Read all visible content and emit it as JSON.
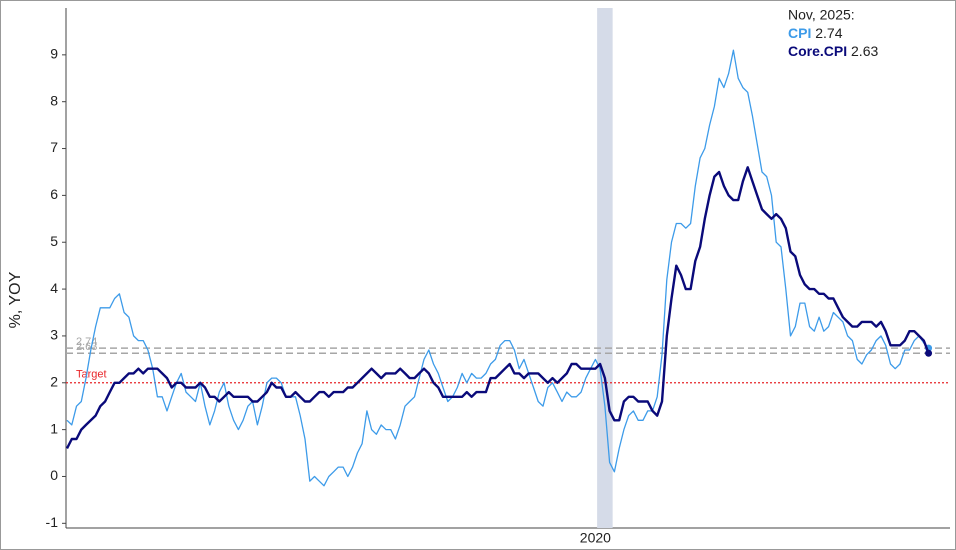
{
  "chart_data": {
    "type": "line",
    "y_label": "%, YOY",
    "ylim": [
      -1.1,
      10
    ],
    "yticks": [
      -1,
      0,
      1,
      2,
      3,
      4,
      5,
      6,
      7,
      8,
      9
    ],
    "annotation_title": "Nov, 2025:",
    "shaded_range": [
      112,
      114
    ],
    "target": {
      "label": "Target",
      "value": 2,
      "color": "#e8262a"
    },
    "reference_color": "#a6a6a6",
    "categories": [
      null,
      null,
      null,
      null,
      null,
      null,
      null,
      null,
      null,
      null,
      null,
      null,
      null,
      null,
      null,
      null,
      null,
      null,
      null,
      null,
      null,
      null,
      null,
      null,
      null,
      null,
      null,
      null,
      null,
      null,
      null,
      null,
      null,
      null,
      null,
      null,
      null,
      null,
      null,
      null,
      null,
      null,
      null,
      null,
      null,
      null,
      null,
      null,
      null,
      null,
      null,
      null,
      null,
      null,
      null,
      null,
      null,
      null,
      null,
      null,
      null,
      null,
      null,
      null,
      null,
      null,
      null,
      null,
      null,
      null,
      null,
      null,
      null,
      null,
      null,
      null,
      null,
      null,
      null,
      null,
      null,
      null,
      null,
      null,
      null,
      null,
      null,
      null,
      null,
      null,
      null,
      null,
      null,
      null,
      null,
      null,
      null,
      null,
      null,
      null,
      null,
      null,
      null,
      null,
      null,
      null,
      null,
      null,
      null,
      null,
      null,
      "2020",
      null,
      null,
      null,
      null,
      null,
      null,
      null,
      null,
      null,
      null,
      null,
      null,
      null,
      null,
      null,
      null,
      null,
      null,
      null,
      null,
      null,
      null,
      null,
      null,
      null,
      null,
      null,
      null,
      null,
      null,
      null,
      null,
      null,
      null,
      null,
      null,
      null,
      null,
      null,
      null,
      null,
      null,
      null,
      null,
      null,
      null,
      null,
      null,
      null,
      null,
      null,
      null,
      null,
      null,
      null,
      null,
      null,
      null,
      null,
      null,
      null,
      null,
      null,
      null,
      null,
      null,
      null,
      null,
      null,
      null
    ],
    "series": [
      {
        "name": "CPI",
        "color": "#3d9be9",
        "width": 1.3,
        "values": [
          1.2,
          1.1,
          1.5,
          1.6,
          2.1,
          2.7,
          3.2,
          3.6,
          3.6,
          3.6,
          3.8,
          3.9,
          3.5,
          3.4,
          3.0,
          2.9,
          2.9,
          2.7,
          2.3,
          1.7,
          1.7,
          1.4,
          1.7,
          2.0,
          2.2,
          1.8,
          1.7,
          1.6,
          2.0,
          1.5,
          1.1,
          1.4,
          1.8,
          2.0,
          1.5,
          1.2,
          1.0,
          1.2,
          1.5,
          1.6,
          1.1,
          1.5,
          2.0,
          2.1,
          2.1,
          2.0,
          1.7,
          1.7,
          1.7,
          1.3,
          0.8,
          -0.1,
          0.0,
          -0.1,
          -0.2,
          0.0,
          0.1,
          0.2,
          0.2,
          0.0,
          0.2,
          0.5,
          0.7,
          1.4,
          1.0,
          0.9,
          1.1,
          1.0,
          1.0,
          0.8,
          1.1,
          1.5,
          1.6,
          1.7,
          2.1,
          2.5,
          2.7,
          2.4,
          2.2,
          1.9,
          1.6,
          1.7,
          1.9,
          2.2,
          2.0,
          2.2,
          2.1,
          2.1,
          2.2,
          2.4,
          2.5,
          2.8,
          2.9,
          2.9,
          2.7,
          2.3,
          2.5,
          2.2,
          1.9,
          1.6,
          1.5,
          1.9,
          2.0,
          1.8,
          1.6,
          1.8,
          1.7,
          1.7,
          1.8,
          2.1,
          2.3,
          2.5,
          2.3,
          1.5,
          0.3,
          0.1,
          0.6,
          1.0,
          1.3,
          1.4,
          1.2,
          1.2,
          1.4,
          1.4,
          1.7,
          2.6,
          4.2,
          5.0,
          5.4,
          5.4,
          5.3,
          5.4,
          6.2,
          6.8,
          7.0,
          7.5,
          7.9,
          8.5,
          8.3,
          8.6,
          9.1,
          8.5,
          8.3,
          8.2,
          7.7,
          7.1,
          6.5,
          6.4,
          6.0,
          5.0,
          4.9,
          4.0,
          3.0,
          3.2,
          3.7,
          3.7,
          3.2,
          3.1,
          3.4,
          3.1,
          3.2,
          3.5,
          3.4,
          3.3,
          3.0,
          2.9,
          2.5,
          2.4,
          2.6,
          2.7,
          2.9,
          3.0,
          2.8,
          2.4,
          2.3,
          2.4,
          2.7,
          2.7,
          2.9,
          3.0,
          2.85,
          2.74
        ]
      },
      {
        "name": "Core.CPI",
        "color": "#0a0a7a",
        "width": 2.4,
        "values": [
          0.6,
          0.8,
          0.8,
          1.0,
          1.1,
          1.2,
          1.3,
          1.5,
          1.6,
          1.8,
          2.0,
          2.0,
          2.1,
          2.2,
          2.2,
          2.3,
          2.2,
          2.3,
          2.3,
          2.3,
          2.2,
          2.1,
          1.9,
          2.0,
          2.0,
          1.9,
          1.9,
          1.9,
          2.0,
          1.9,
          1.7,
          1.7,
          1.6,
          1.7,
          1.8,
          1.7,
          1.7,
          1.7,
          1.7,
          1.6,
          1.6,
          1.7,
          1.8,
          2.0,
          1.9,
          1.9,
          1.7,
          1.7,
          1.8,
          1.7,
          1.6,
          1.6,
          1.7,
          1.8,
          1.8,
          1.7,
          1.8,
          1.8,
          1.8,
          1.9,
          1.9,
          2.0,
          2.1,
          2.2,
          2.3,
          2.2,
          2.1,
          2.2,
          2.2,
          2.2,
          2.3,
          2.2,
          2.1,
          2.1,
          2.2,
          2.3,
          2.2,
          2.0,
          1.9,
          1.7,
          1.7,
          1.7,
          1.7,
          1.7,
          1.8,
          1.7,
          1.8,
          1.8,
          1.8,
          2.1,
          2.1,
          2.2,
          2.3,
          2.4,
          2.2,
          2.2,
          2.1,
          2.2,
          2.2,
          2.2,
          2.1,
          2.0,
          2.1,
          2.0,
          2.1,
          2.2,
          2.4,
          2.4,
          2.3,
          2.3,
          2.3,
          2.3,
          2.4,
          2.1,
          1.4,
          1.2,
          1.2,
          1.6,
          1.7,
          1.7,
          1.6,
          1.6,
          1.6,
          1.4,
          1.3,
          1.6,
          3.0,
          3.8,
          4.5,
          4.3,
          4.0,
          4.0,
          4.6,
          4.9,
          5.5,
          6.0,
          6.4,
          6.5,
          6.2,
          6.0,
          5.9,
          5.9,
          6.3,
          6.6,
          6.3,
          6.0,
          5.7,
          5.6,
          5.5,
          5.6,
          5.5,
          5.3,
          4.8,
          4.7,
          4.3,
          4.1,
          4.0,
          4.0,
          3.9,
          3.9,
          3.8,
          3.8,
          3.6,
          3.4,
          3.3,
          3.2,
          3.2,
          3.3,
          3.3,
          3.3,
          3.2,
          3.3,
          3.1,
          2.8,
          2.8,
          2.8,
          2.9,
          3.1,
          3.1,
          3.0,
          2.9,
          2.63
        ]
      }
    ]
  }
}
